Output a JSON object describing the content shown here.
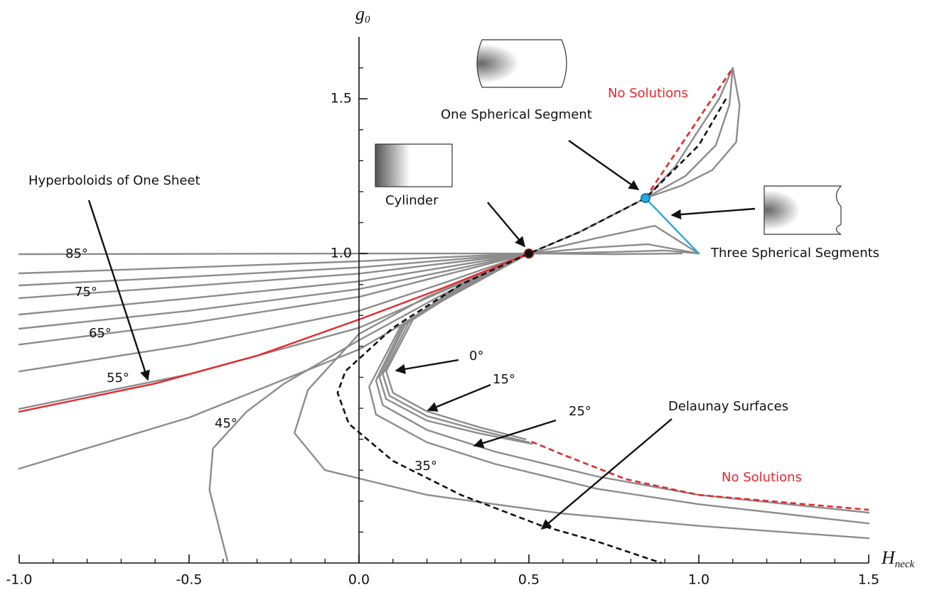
{
  "chart_data": {
    "type": "line",
    "xlabel": "H",
    "xlabel_sub": "neck",
    "ylabel": "g",
    "ylabel_sub": "0",
    "xlim": [
      -1.0,
      1.5
    ],
    "ylim": [
      0,
      1.7
    ],
    "xticks": [
      {
        "value": -1.0,
        "label": "-1.0"
      },
      {
        "value": -0.5,
        "label": "-0.5"
      },
      {
        "value": 0.0,
        "label": "0.0"
      },
      {
        "value": 0.5,
        "label": "0.5"
      },
      {
        "value": 1.0,
        "label": "1.0"
      },
      {
        "value": 1.5,
        "label": "1.5"
      }
    ],
    "xminorticks": [
      -0.9,
      -0.8,
      -0.7,
      -0.6,
      -0.4,
      -0.3,
      -0.2,
      -0.1,
      0.1,
      0.2,
      0.3,
      0.4,
      0.6,
      0.7,
      0.8,
      0.9,
      1.1,
      1.2,
      1.3,
      1.4
    ],
    "yticks": [
      {
        "value": 1.0,
        "label": "1.0"
      },
      {
        "value": 1.5,
        "label": "1.5"
      }
    ],
    "yminorticks": [
      0.1,
      0.2,
      0.3,
      0.4,
      0.5,
      0.6,
      0.7,
      0.8,
      0.9,
      1.1,
      1.2,
      1.3,
      1.4,
      1.6
    ],
    "series": [
      {
        "color": "#8c8c8c",
        "x": [
          -1,
          -0.5,
          0,
          0.25,
          0.5
        ],
        "values": [
          0.998,
          0.999,
          1.0,
          1.0,
          1.0
        ]
      },
      {
        "color": "#8c8c8c",
        "x": [
          -1,
          -0.5,
          0,
          0.25,
          0.5
        ],
        "values": [
          0.936,
          0.955,
          0.975,
          0.988,
          1.0
        ]
      },
      {
        "color": "#8c8c8c",
        "x": [
          -1,
          -0.5,
          0,
          0.25,
          0.5
        ],
        "values": [
          0.897,
          0.925,
          0.955,
          0.978,
          1.0
        ]
      },
      {
        "color": "#8c8c8c",
        "x": [
          -1,
          -0.5,
          0,
          0.25,
          0.5
        ],
        "values": [
          0.856,
          0.895,
          0.935,
          0.968,
          1.0
        ]
      },
      {
        "color": "#8c8c8c",
        "x": [
          -1,
          -0.5,
          0,
          0.25,
          0.5
        ],
        "values": [
          0.803,
          0.855,
          0.91,
          0.955,
          1.0
        ]
      },
      {
        "color": "#8c8c8c",
        "x": [
          -1,
          -0.5,
          0,
          0.25,
          0.5
        ],
        "values": [
          0.757,
          0.815,
          0.885,
          0.942,
          1.0
        ]
      },
      {
        "color": "#8c8c8c",
        "x": [
          -1,
          -0.5,
          0,
          0.25,
          0.5
        ],
        "values": [
          0.706,
          0.775,
          0.86,
          0.93,
          1.0
        ]
      },
      {
        "color": "#8c8c8c",
        "x": [
          -1,
          -0.5,
          0,
          0.25,
          0.5
        ],
        "values": [
          0.619,
          0.705,
          0.815,
          0.905,
          1.0
        ]
      },
      {
        "color": "#8c8c8c",
        "x": [
          -1,
          -0.5,
          0,
          0.25,
          0.5
        ],
        "values": [
          0.498,
          0.61,
          0.76,
          0.88,
          1.0
        ]
      },
      {
        "color": "#8c8c8c",
        "x": [
          -1,
          -0.5,
          0,
          0.25,
          0.5
        ],
        "values": [
          0.305,
          0.47,
          0.69,
          0.85,
          1.0
        ]
      },
      {
        "color": "#8c8c8c",
        "x": [
          -0.387,
          -0.44,
          -0.43,
          -0.33,
          -0.22,
          0,
          0.25,
          0.5
        ],
        "values": [
          0.007,
          0.236,
          0.37,
          0.49,
          0.58,
          0.72,
          0.87,
          1.0
        ]
      },
      {
        "color": "#8c8c8c",
        "x": [
          0.5,
          0.3,
          0.16,
          0.08,
          0.1,
          0.2,
          0.35,
          0.49
        ],
        "values": [
          1.0,
          0.9,
          0.79,
          0.62,
          0.55,
          0.49,
          0.44,
          0.4
        ]
      },
      {
        "color": "#8c8c8c",
        "x": [
          0.5,
          0.3,
          0.15,
          0.07,
          0.09,
          0.2,
          0.35,
          0.5
        ],
        "values": [
          1.0,
          0.9,
          0.785,
          0.61,
          0.54,
          0.475,
          0.43,
          0.39
        ]
      },
      {
        "color": "#8c8c8c",
        "x": [
          0.5,
          0.3,
          0.14,
          0.06,
          0.08,
          0.2,
          0.35,
          0.51
        ],
        "values": [
          1.0,
          0.895,
          0.78,
          0.6,
          0.53,
          0.46,
          0.42,
          0.385
        ]
      },
      {
        "color": "#8c8c8c",
        "x": [
          0.5,
          0.3,
          0.13,
          0.05,
          0.07,
          0.2,
          0.4,
          0.7,
          1.0,
          1.5
        ],
        "values": [
          1.0,
          0.89,
          0.77,
          0.59,
          0.51,
          0.43,
          0.36,
          0.28,
          0.22,
          0.163
        ]
      },
      {
        "color": "#8c8c8c",
        "x": [
          0.5,
          0.3,
          0.12,
          0.03,
          0.05,
          0.2,
          0.4,
          0.7,
          1.0,
          1.5
        ],
        "values": [
          1.0,
          0.885,
          0.76,
          0.57,
          0.48,
          0.39,
          0.32,
          0.24,
          0.19,
          0.128
        ]
      },
      {
        "color": "#8c8c8c",
        "x": [
          0.5,
          0.2,
          0,
          -0.15,
          -0.19,
          -0.1,
          0.2,
          0.6,
          1.0,
          1.5
        ],
        "values": [
          1.0,
          0.86,
          0.74,
          0.56,
          0.42,
          0.3,
          0.22,
          0.16,
          0.12,
          0.08
        ]
      },
      {
        "color": "#8c8c8c",
        "x": [
          0.5,
          0.65,
          0.843
        ],
        "values": [
          1.0,
          1.07,
          1.179
        ]
      },
      {
        "color": "#8c8c8c",
        "x": [
          0.843,
          0.95,
          1.04,
          1.11,
          1.12,
          1.1
        ],
        "values": [
          1.179,
          1.22,
          1.27,
          1.36,
          1.48,
          1.6
        ]
      },
      {
        "color": "#8c8c8c",
        "x": [
          0.843,
          0.96,
          1.05,
          1.09,
          1.1
        ],
        "values": [
          1.179,
          1.25,
          1.35,
          1.48,
          1.6
        ]
      },
      {
        "color": "#8c8c8c",
        "x": [
          0.843,
          0.93,
          1.0,
          1.06,
          1.1
        ],
        "values": [
          1.179,
          1.28,
          1.4,
          1.5,
          1.6
        ]
      },
      {
        "color": "#8c8c8c",
        "x": [
          0.5,
          0.7,
          0.87,
          1.0
        ],
        "values": [
          1.0,
          1.05,
          1.09,
          1.0
        ]
      },
      {
        "color": "#8c8c8c",
        "x": [
          0.5,
          0.7,
          0.85,
          1.0
        ],
        "values": [
          1.0,
          1.02,
          1.03,
          1.0
        ]
      },
      {
        "color": "#8c8c8c",
        "x": [
          0.5,
          0.75,
          0.9,
          1.0
        ],
        "values": [
          1.0,
          1.005,
          1.01,
          1.0
        ]
      },
      {
        "color": "#8c8c8c",
        "x": [
          0.5,
          0.75,
          0.95
        ],
        "values": [
          1.0,
          0.998,
          1.0
        ]
      },
      {
        "color": "#29a8e0",
        "x": [
          0.843,
          1.0
        ],
        "values": [
          1.179,
          1.0
        ]
      },
      {
        "color": "#e8262b",
        "x": [
          -1,
          -0.6,
          -0.3,
          0,
          0.25,
          0.5
        ],
        "values": [
          0.489,
          0.58,
          0.67,
          0.787,
          0.89,
          1.0
        ]
      },
      {
        "color": "#111111",
        "style": "dashed",
        "x": [
          1.08,
          1.0,
          0.843,
          0.65,
          0.5,
          0.3,
          0.1,
          -0.04,
          -0.063,
          -0.03,
          0.1,
          0.3,
          0.533,
          0.7,
          0.89
        ],
        "values": [
          1.5,
          1.35,
          1.179,
          1.07,
          1.0,
          0.9,
          0.76,
          0.62,
          0.55,
          0.45,
          0.33,
          0.22,
          0.122,
          0.07,
          0.0
        ]
      },
      {
        "color": "#e8262b",
        "style": "dashed",
        "x": [
          0.843,
          1.1
        ],
        "values": [
          1.18,
          1.6
        ]
      },
      {
        "color": "#e8262b",
        "style": "dashed",
        "x": [
          0.508,
          0.6,
          0.785,
          1.0,
          1.5
        ],
        "values": [
          0.392,
          0.35,
          0.271,
          0.22,
          0.172
        ]
      }
    ],
    "points": [
      {
        "x": 0.5,
        "y": 1.0,
        "color": "#111111"
      },
      {
        "x": 0.843,
        "y": 1.179,
        "color": "#29a8e0"
      }
    ],
    "annotations": [
      {
        "text": "Hyperboloids of One Sheet"
      },
      {
        "text": "Cylinder"
      },
      {
        "text": "One Spherical Segment"
      },
      {
        "text": "No Solutions",
        "color": "#e8262b"
      },
      {
        "text": "Three Spherical Segments"
      },
      {
        "text": "0°"
      },
      {
        "text": "15°"
      },
      {
        "text": "25°"
      },
      {
        "text": "35°"
      },
      {
        "text": "45°"
      },
      {
        "text": "55°"
      },
      {
        "text": "65°"
      },
      {
        "text": "75°"
      },
      {
        "text": "85°"
      },
      {
        "text": "Delaunay Surfaces"
      },
      {
        "text": "No Solutions",
        "color": "#e8262b"
      }
    ]
  }
}
